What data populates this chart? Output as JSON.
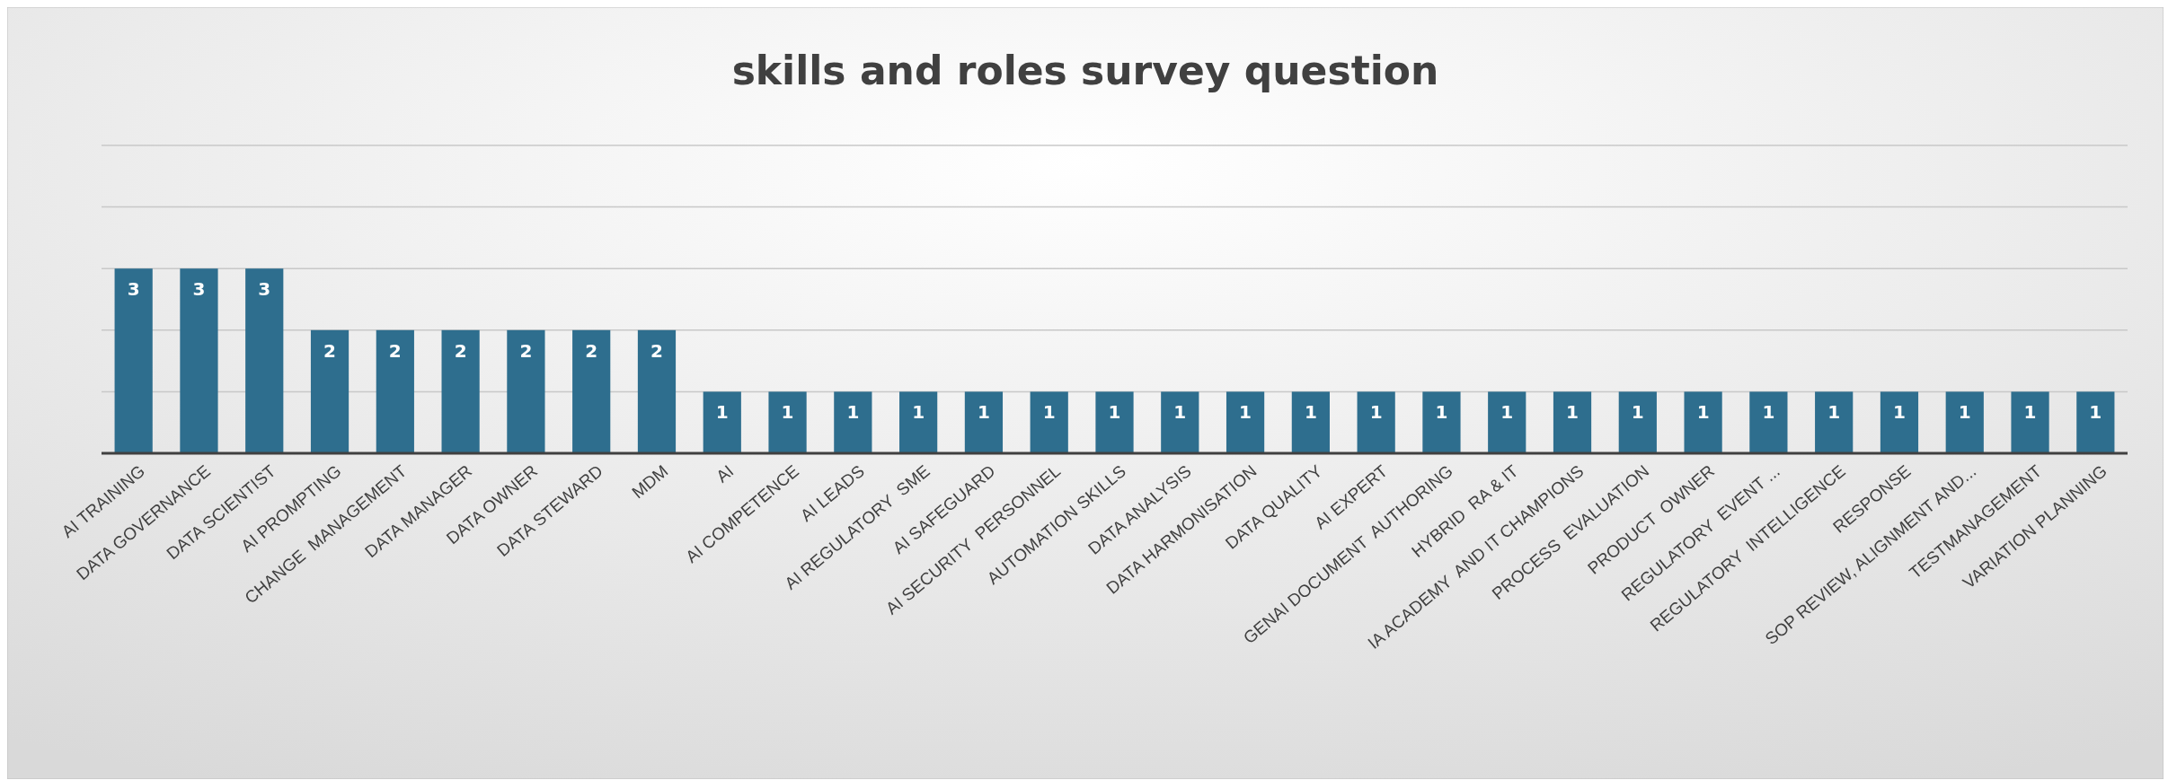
{
  "chart_data": {
    "type": "bar",
    "title": "skills and roles survey question",
    "categories": [
      "AI TRAINING",
      "DATA GOVERNANCE",
      "DATA SCIENTIST",
      "AI PROMPTING",
      "CHANGE  MANAGEMENT",
      "DATA MANAGER",
      "DATA OWNER",
      "DATA STEWARD",
      "MDM",
      "AI",
      "AI COMPETENCE",
      "AI LEADS",
      "AI REGULATORY  SME",
      "AI SAFEGUARD",
      "AI SECURITY  PERSONNEL",
      "AUTOMATION SKILLS",
      "DATA ANALYSIS",
      "DATA HARMONISATION",
      "DATA QUALITY",
      "AI EXPERT",
      "GENAI DOCUMENT  AUTHORING",
      "HYBRID  RA & IT",
      "IA ACADEMY  AND IT CHAMPIONS",
      "PROCESS  EVALUATION",
      "PRODUCT  OWNER",
      "REGULATORY  EVENT ...",
      "REGULATORY  INTELLIGENCE",
      "RESPONSE",
      "SOP REVIEW, ALIGNMENT AND...",
      "TESTMANAGEMENT",
      "VARIATION PLANNING"
    ],
    "values": [
      3,
      3,
      3,
      2,
      2,
      2,
      2,
      2,
      2,
      1,
      1,
      1,
      1,
      1,
      1,
      1,
      1,
      1,
      1,
      1,
      1,
      1,
      1,
      1,
      1,
      1,
      1,
      1,
      1,
      1,
      1
    ],
    "color": "#2e6e8e",
    "data_labels": true,
    "ylim": [
      0,
      5
    ],
    "yticks": [
      {
        "value": 0,
        "label": null
      },
      {
        "value": 1,
        "label": null
      },
      {
        "value": 2,
        "label": null
      },
      {
        "value": 3,
        "label": null
      },
      {
        "value": 4,
        "label": null
      },
      {
        "value": 5,
        "label": null
      }
    ],
    "tick_labels": "x",
    "grid": "y"
  }
}
